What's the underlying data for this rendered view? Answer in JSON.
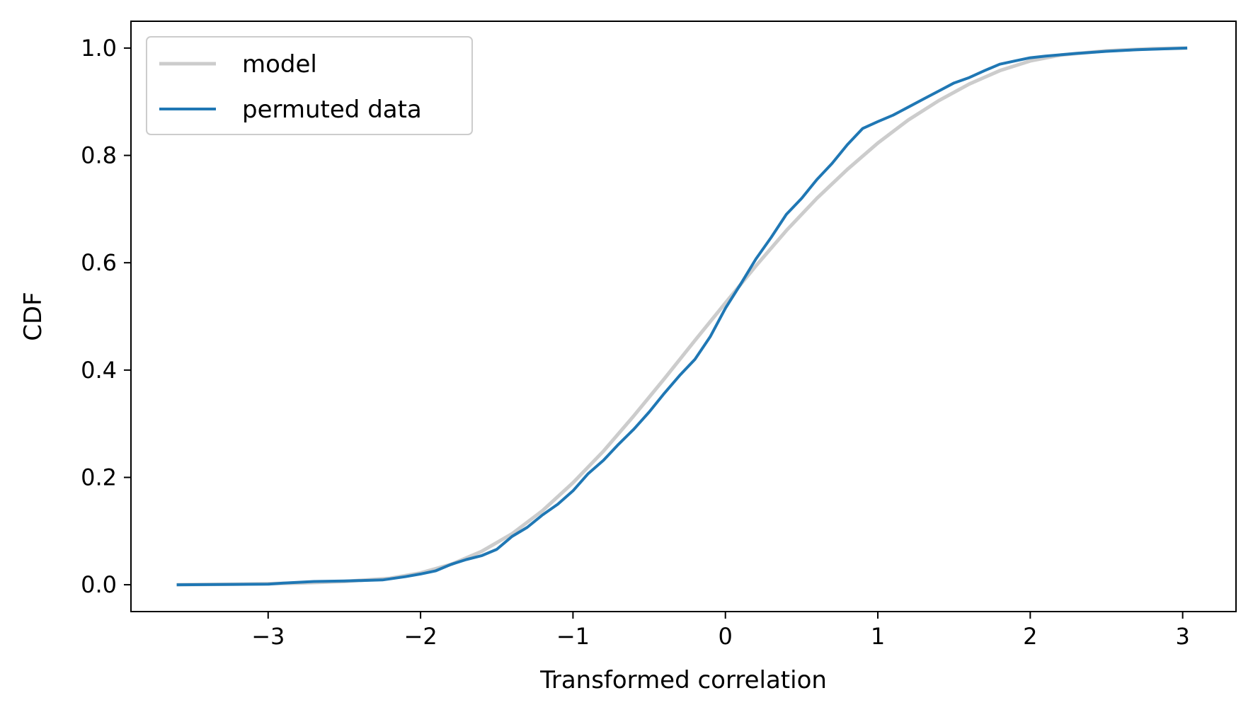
{
  "chart_data": {
    "type": "line",
    "xlabel": "Transformed correlation",
    "ylabel": "CDF",
    "xlim": [
      -3.9,
      3.35
    ],
    "ylim": [
      -0.05,
      1.05
    ],
    "xticks": [
      -3,
      -2,
      -1,
      0,
      1,
      2,
      3
    ],
    "xtick_labels": [
      "−3",
      "−2",
      "−1",
      "0",
      "1",
      "2",
      "3"
    ],
    "yticks": [
      0.0,
      0.2,
      0.4,
      0.6,
      0.8,
      1.0
    ],
    "ytick_labels": [
      "0.0",
      "0.2",
      "0.4",
      "0.6",
      "0.8",
      "1.0"
    ],
    "legend_position": "upper-left",
    "grid": false,
    "series": [
      {
        "name": "model",
        "color": "#cccccc",
        "x": [
          -3.6,
          -3.2,
          -2.8,
          -2.5,
          -2.2,
          -2.0,
          -1.8,
          -1.6,
          -1.4,
          -1.2,
          -1.0,
          -0.8,
          -0.6,
          -0.4,
          -0.2,
          0.0,
          0.2,
          0.4,
          0.6,
          0.8,
          1.0,
          1.2,
          1.4,
          1.6,
          1.8,
          2.0,
          2.2,
          2.5,
          2.8,
          3.03
        ],
        "y": [
          0.0,
          0.001,
          0.003,
          0.006,
          0.012,
          0.022,
          0.038,
          0.062,
          0.095,
          0.138,
          0.19,
          0.249,
          0.315,
          0.384,
          0.455,
          0.525,
          0.594,
          0.66,
          0.72,
          0.774,
          0.823,
          0.866,
          0.902,
          0.933,
          0.958,
          0.976,
          0.987,
          0.995,
          0.999,
          1.0
        ]
      },
      {
        "name": "permuted data",
        "color": "#1f77b4",
        "x": [
          -3.6,
          -3.0,
          -2.9,
          -2.7,
          -2.5,
          -2.25,
          -2.1,
          -2.0,
          -1.9,
          -1.8,
          -1.7,
          -1.6,
          -1.5,
          -1.4,
          -1.3,
          -1.2,
          -1.1,
          -1.0,
          -0.9,
          -0.8,
          -0.7,
          -0.6,
          -0.5,
          -0.4,
          -0.3,
          -0.2,
          -0.1,
          0.0,
          0.1,
          0.2,
          0.3,
          0.4,
          0.5,
          0.6,
          0.7,
          0.8,
          0.9,
          1.0,
          1.1,
          1.2,
          1.3,
          1.4,
          1.5,
          1.6,
          1.7,
          1.8,
          1.9,
          2.0,
          2.1,
          2.3,
          2.5,
          2.7,
          3.03
        ],
        "y": [
          0.0,
          0.001,
          0.003,
          0.006,
          0.007,
          0.009,
          0.015,
          0.02,
          0.026,
          0.038,
          0.047,
          0.054,
          0.066,
          0.09,
          0.107,
          0.13,
          0.15,
          0.175,
          0.207,
          0.232,
          0.262,
          0.29,
          0.322,
          0.357,
          0.39,
          0.42,
          0.462,
          0.515,
          0.56,
          0.607,
          0.647,
          0.69,
          0.72,
          0.755,
          0.785,
          0.82,
          0.85,
          0.863,
          0.875,
          0.89,
          0.905,
          0.92,
          0.935,
          0.945,
          0.958,
          0.97,
          0.976,
          0.982,
          0.985,
          0.99,
          0.994,
          0.997,
          1.0
        ]
      }
    ]
  }
}
